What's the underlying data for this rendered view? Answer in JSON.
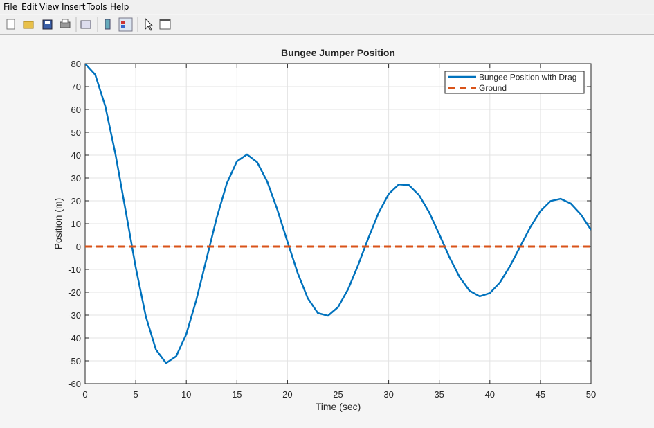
{
  "menu": [
    "File",
    "Edit",
    "View",
    "Insert",
    "Tools",
    "Help"
  ],
  "chart_data": {
    "type": "line",
    "title": "Bungee Jumper Position",
    "xlabel": "Time (sec)",
    "ylabel": "Position (m)",
    "xlim": [
      0,
      50
    ],
    "ylim": [
      -60,
      80
    ],
    "xticks": [
      0,
      5,
      10,
      15,
      20,
      25,
      30,
      35,
      40,
      45,
      50
    ],
    "yticks": [
      -60,
      -50,
      -40,
      -30,
      -20,
      -10,
      0,
      10,
      20,
      30,
      40,
      50,
      60,
      70,
      80
    ],
    "grid": true,
    "legend": "upper right",
    "series": [
      {
        "name": "Bungee Position with Drag",
        "color": "#0072bd",
        "style": "solid",
        "x": [
          0,
          1,
          2,
          3,
          4,
          5,
          6,
          7,
          8,
          9,
          10,
          11,
          12,
          13,
          14,
          15,
          16,
          17,
          18,
          19,
          20,
          21,
          22,
          23,
          24,
          25,
          26,
          27,
          28,
          29,
          30,
          31,
          32,
          33,
          34,
          35,
          36,
          37,
          38,
          39,
          40,
          41,
          42,
          43,
          44,
          45,
          46,
          47,
          48,
          49,
          50
        ],
        "values": [
          80,
          75.2,
          61.3,
          40.4,
          15.8,
          -9.1,
          -30.6,
          -45.1,
          -51.0,
          -48.0,
          -38.3,
          -23.2,
          -5.35,
          12.5,
          27.6,
          37.3,
          40.3,
          36.9,
          28.4,
          16.1,
          2.1,
          -11.5,
          -22.6,
          -29.1,
          -30.3,
          -26.5,
          -18.6,
          -7.9,
          3.8,
          14.7,
          23.0,
          27.2,
          26.9,
          22.5,
          15.0,
          5.4,
          -4.6,
          -13.3,
          -19.4,
          -21.8,
          -20.4,
          -15.7,
          -8.5,
          0.0,
          8.5,
          15.5,
          19.9,
          20.9,
          18.8,
          14.0,
          7.3
        ]
      },
      {
        "name": "Ground",
        "color": "#d95319",
        "style": "dashed",
        "x": [
          0,
          50
        ],
        "values": [
          0,
          0
        ]
      }
    ]
  }
}
